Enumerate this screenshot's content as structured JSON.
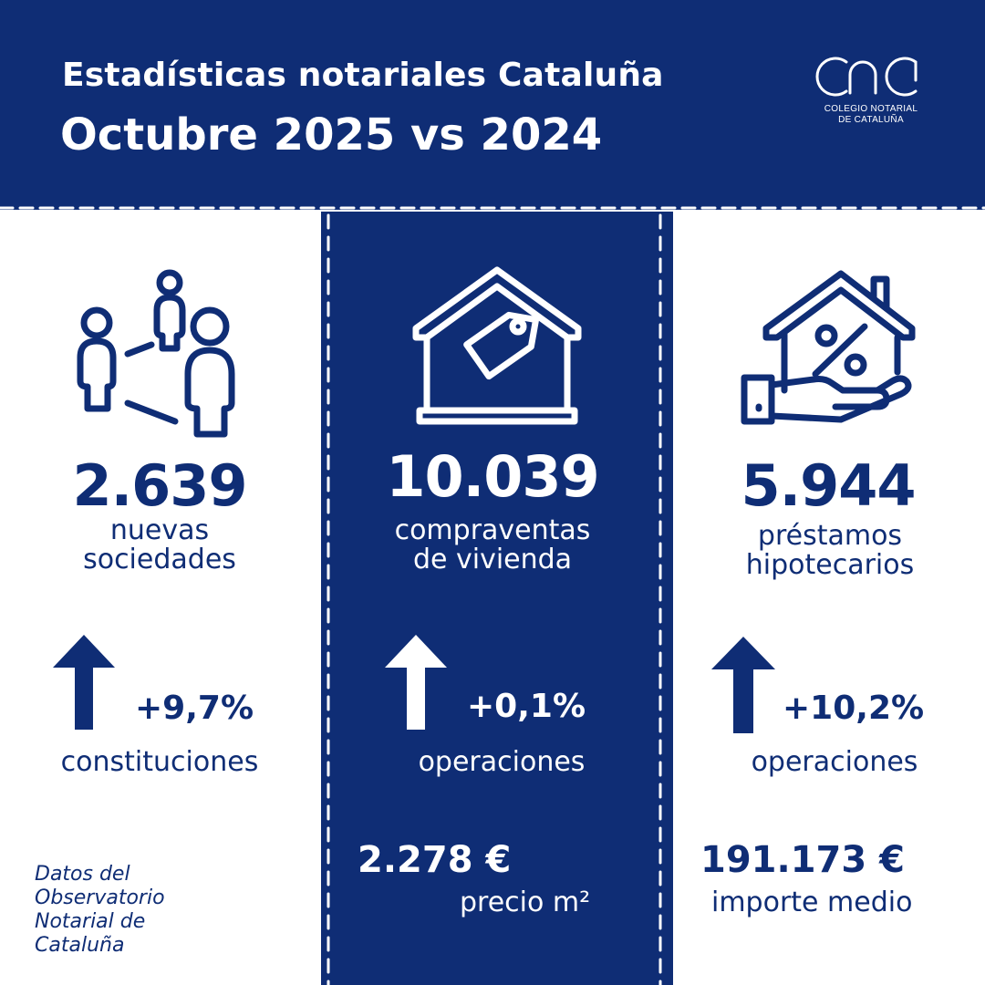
{
  "header": {
    "title_line1": "Estadísticas notariales Cataluña",
    "title_line2": "Octubre 2025 vs 2024",
    "logo": {
      "mark": "cnc",
      "line1": "COLEGIO NOTARIAL",
      "line2": "DE CATALUÑA"
    }
  },
  "colors": {
    "navy": "#0f2d75",
    "white": "#ffffff"
  },
  "sociedades": {
    "icon": "people-network-icon",
    "value": "2.639",
    "label_line1": "nuevas",
    "label_line2": "sociedades",
    "change": "+9,7%",
    "change_direction": "up",
    "change_label": "constituciones"
  },
  "compraventas": {
    "icon": "house-price-tag-icon",
    "value": "10.039",
    "label_line1": "compraventas",
    "label_line2": "de vivienda",
    "change": "+0,1%",
    "change_direction": "up",
    "change_label": "operaciones",
    "amount": "2.278 €",
    "amount_label": "precio m²"
  },
  "prestamos": {
    "icon": "house-percent-hand-icon",
    "value": "5.944",
    "label_line1": "préstamos",
    "label_line2": "hipotecarios",
    "change": "+10,2%",
    "change_direction": "up",
    "change_label": "operaciones",
    "amount": "191.173 €",
    "amount_label": "importe medio"
  },
  "footnote": {
    "line1": "Datos del",
    "line2": "Observatorio",
    "line3": "Notarial de",
    "line4": "Cataluña"
  }
}
